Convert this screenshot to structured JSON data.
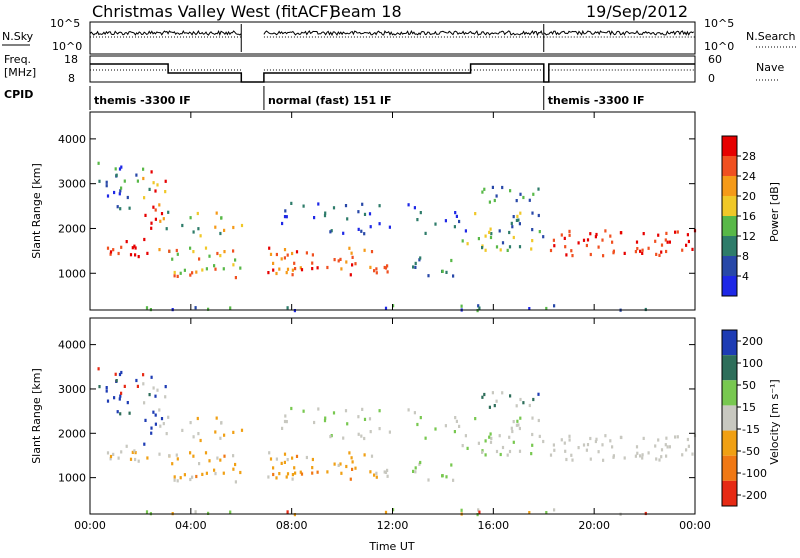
{
  "header": {
    "station": "Christmas Valley West (fitACF)",
    "beam": "Beam 18",
    "date": "19/Sep/2012"
  },
  "panels": {
    "nsky_label": "N.Sky",
    "nsearch_label": "N.Search",
    "freq_label_1": "Freq.",
    "freq_label_2": "[MHz]",
    "nave_label": "Nave",
    "cpid_label": "CPID",
    "nsky_ticks": [
      "10^5",
      "10^0"
    ],
    "nsearch_ticks": [
      "10^5",
      "10^0"
    ],
    "freq_ticks": [
      "18",
      "8"
    ],
    "nave_ticks": [
      "60",
      "0"
    ]
  },
  "cpid_segments": [
    {
      "start_hour": 0.0,
      "end_hour": 6.0,
      "label": "themis -3300 IF"
    },
    {
      "start_hour": 6.9,
      "end_hour": 18.0,
      "label": "normal (fast) 151 IF"
    },
    {
      "start_hour": 18.0,
      "end_hour": 24.0,
      "label": "themis -3300 IF"
    }
  ],
  "colorbars": {
    "power": {
      "label": "Power [dB]",
      "ticks": [
        "4",
        "8",
        "12",
        "16",
        "20",
        "24",
        "28"
      ],
      "colors": [
        "#1e28e6",
        "#2848a8",
        "#2e7c6a",
        "#58b848",
        "#f0c828",
        "#f59a18",
        "#f05020",
        "#e60000"
      ]
    },
    "velocity": {
      "label": "Velocity [m s⁻¹]",
      "ticks": [
        "200",
        "100",
        "50",
        "15",
        "-15",
        "-50",
        "-100",
        "-200"
      ],
      "colors": [
        "#1e3cb4",
        "#2e6e5a",
        "#78c850",
        "#c8c8c0",
        "#f0a014",
        "#f07814",
        "#e62a14"
      ]
    }
  },
  "chart_data": [
    {
      "type": "heatmap",
      "title": "Power",
      "ylabel": "Slant Range [km]",
      "yticks": [
        "1000",
        "2000",
        "3000",
        "4000"
      ],
      "xticks": [
        "00:00",
        "04:00",
        "08:00",
        "12:00",
        "16:00",
        "20:00",
        "00:00"
      ],
      "xlim_hours": [
        0,
        24
      ],
      "ylim_km": [
        180,
        4600
      ],
      "data_gaps_hours": [
        [
          6.0,
          6.9
        ]
      ]
    },
    {
      "type": "heatmap",
      "title": "Velocity",
      "ylabel": "Slant Range [km]",
      "yticks": [
        "1000",
        "2000",
        "3000",
        "4000"
      ],
      "xticks": [
        "00:00",
        "04:00",
        "08:00",
        "12:00",
        "16:00",
        "20:00",
        "00:00"
      ],
      "xlabel": "Time UT",
      "xlim_hours": [
        0,
        24
      ],
      "ylim_km": [
        180,
        4600
      ],
      "data_gaps_hours": [
        [
          6.0,
          6.9
        ]
      ]
    }
  ]
}
